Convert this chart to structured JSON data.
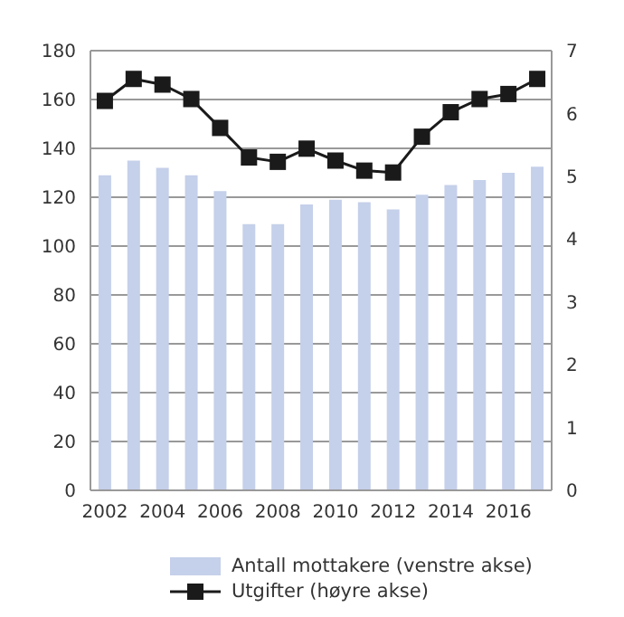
{
  "chart_data": {
    "type": "bar",
    "categories": [
      "2002",
      null,
      "2004",
      null,
      "2006",
      null,
      "2008",
      null,
      "2010",
      null,
      "2012",
      null,
      "2014",
      null,
      "2016",
      null
    ],
    "series": [
      {
        "name": "Antall mottakere (venstre akse)",
        "color": "#c5d0ea",
        "values": [
          129,
          135,
          132,
          129,
          122.5,
          109,
          109,
          117,
          119,
          118,
          115,
          121,
          125,
          127,
          130,
          132.5
        ]
      },
      {
        "name": "Utgifter (høyre akse)",
        "type": "line",
        "axis": "y2",
        "color": "#1a1a1a",
        "marker": "square",
        "values": [
          6.2,
          6.55,
          6.46,
          6.23,
          5.77,
          5.3,
          5.23,
          5.44,
          5.25,
          5.09,
          5.06,
          5.63,
          6.02,
          6.23,
          6.31,
          6.55
        ]
      }
    ],
    "ylim": [
      0,
      180
    ],
    "yticks": [
      0,
      20,
      40,
      60,
      80,
      100,
      120,
      140,
      160,
      180
    ],
    "y2lim": [
      0,
      7
    ],
    "y2ticks": [
      0,
      1,
      2,
      3,
      4,
      5,
      6,
      7
    ],
    "grid": "y",
    "legend": "bottom"
  }
}
